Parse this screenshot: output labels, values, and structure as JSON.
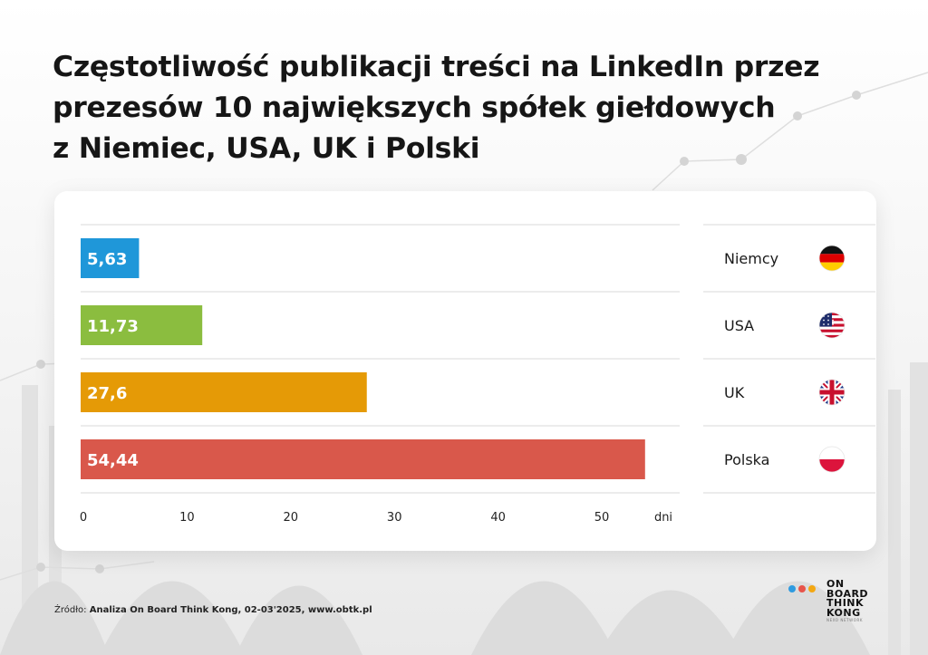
{
  "title_lines": [
    "Częstotliwość publikacji treści na LinkedIn przez",
    "prezesów 10 największych spółek giełdowych",
    "z Niemiec, USA, UK i Polski"
  ],
  "chart_data": {
    "type": "bar",
    "orientation": "horizontal",
    "title": "Częstotliwość publikacji treści na LinkedIn przez prezesów 10 największych spółek giełdowych z Niemiec, USA, UK i Polski",
    "categories": [
      "Niemcy",
      "USA",
      "UK",
      "Polska"
    ],
    "values": [
      5.63,
      11.73,
      27.6,
      54.44
    ],
    "value_labels": [
      "5,63",
      "11,73",
      "27,6",
      "54,44"
    ],
    "bar_colors": [
      "#1f97d9",
      "#8bbd3f",
      "#e59a06",
      "#d9584b"
    ],
    "flag_icons": [
      "flag-germany-icon",
      "flag-usa-icon",
      "flag-uk-icon",
      "flag-poland-icon"
    ],
    "x_ticks": [
      "0",
      "10",
      "20",
      "30",
      "40",
      "50"
    ],
    "x_tick_values": [
      0,
      10,
      20,
      30,
      40,
      50
    ],
    "xlabel": "dni",
    "xlim": [
      0,
      56
    ],
    "grid": "horizontal-separators",
    "legend": "right"
  },
  "source": {
    "prefix": "Źródło: ",
    "text": "Analiza On Board Think Kong, 02-03'2025, www.obtk.pl"
  },
  "logo": {
    "words": [
      "ON",
      "BOARD",
      "THINK",
      "KONG"
    ],
    "tagline": "NEXO NETWORK",
    "dot_colors": [
      "#2f9be0",
      "#e8544a",
      "#f3a712"
    ]
  }
}
